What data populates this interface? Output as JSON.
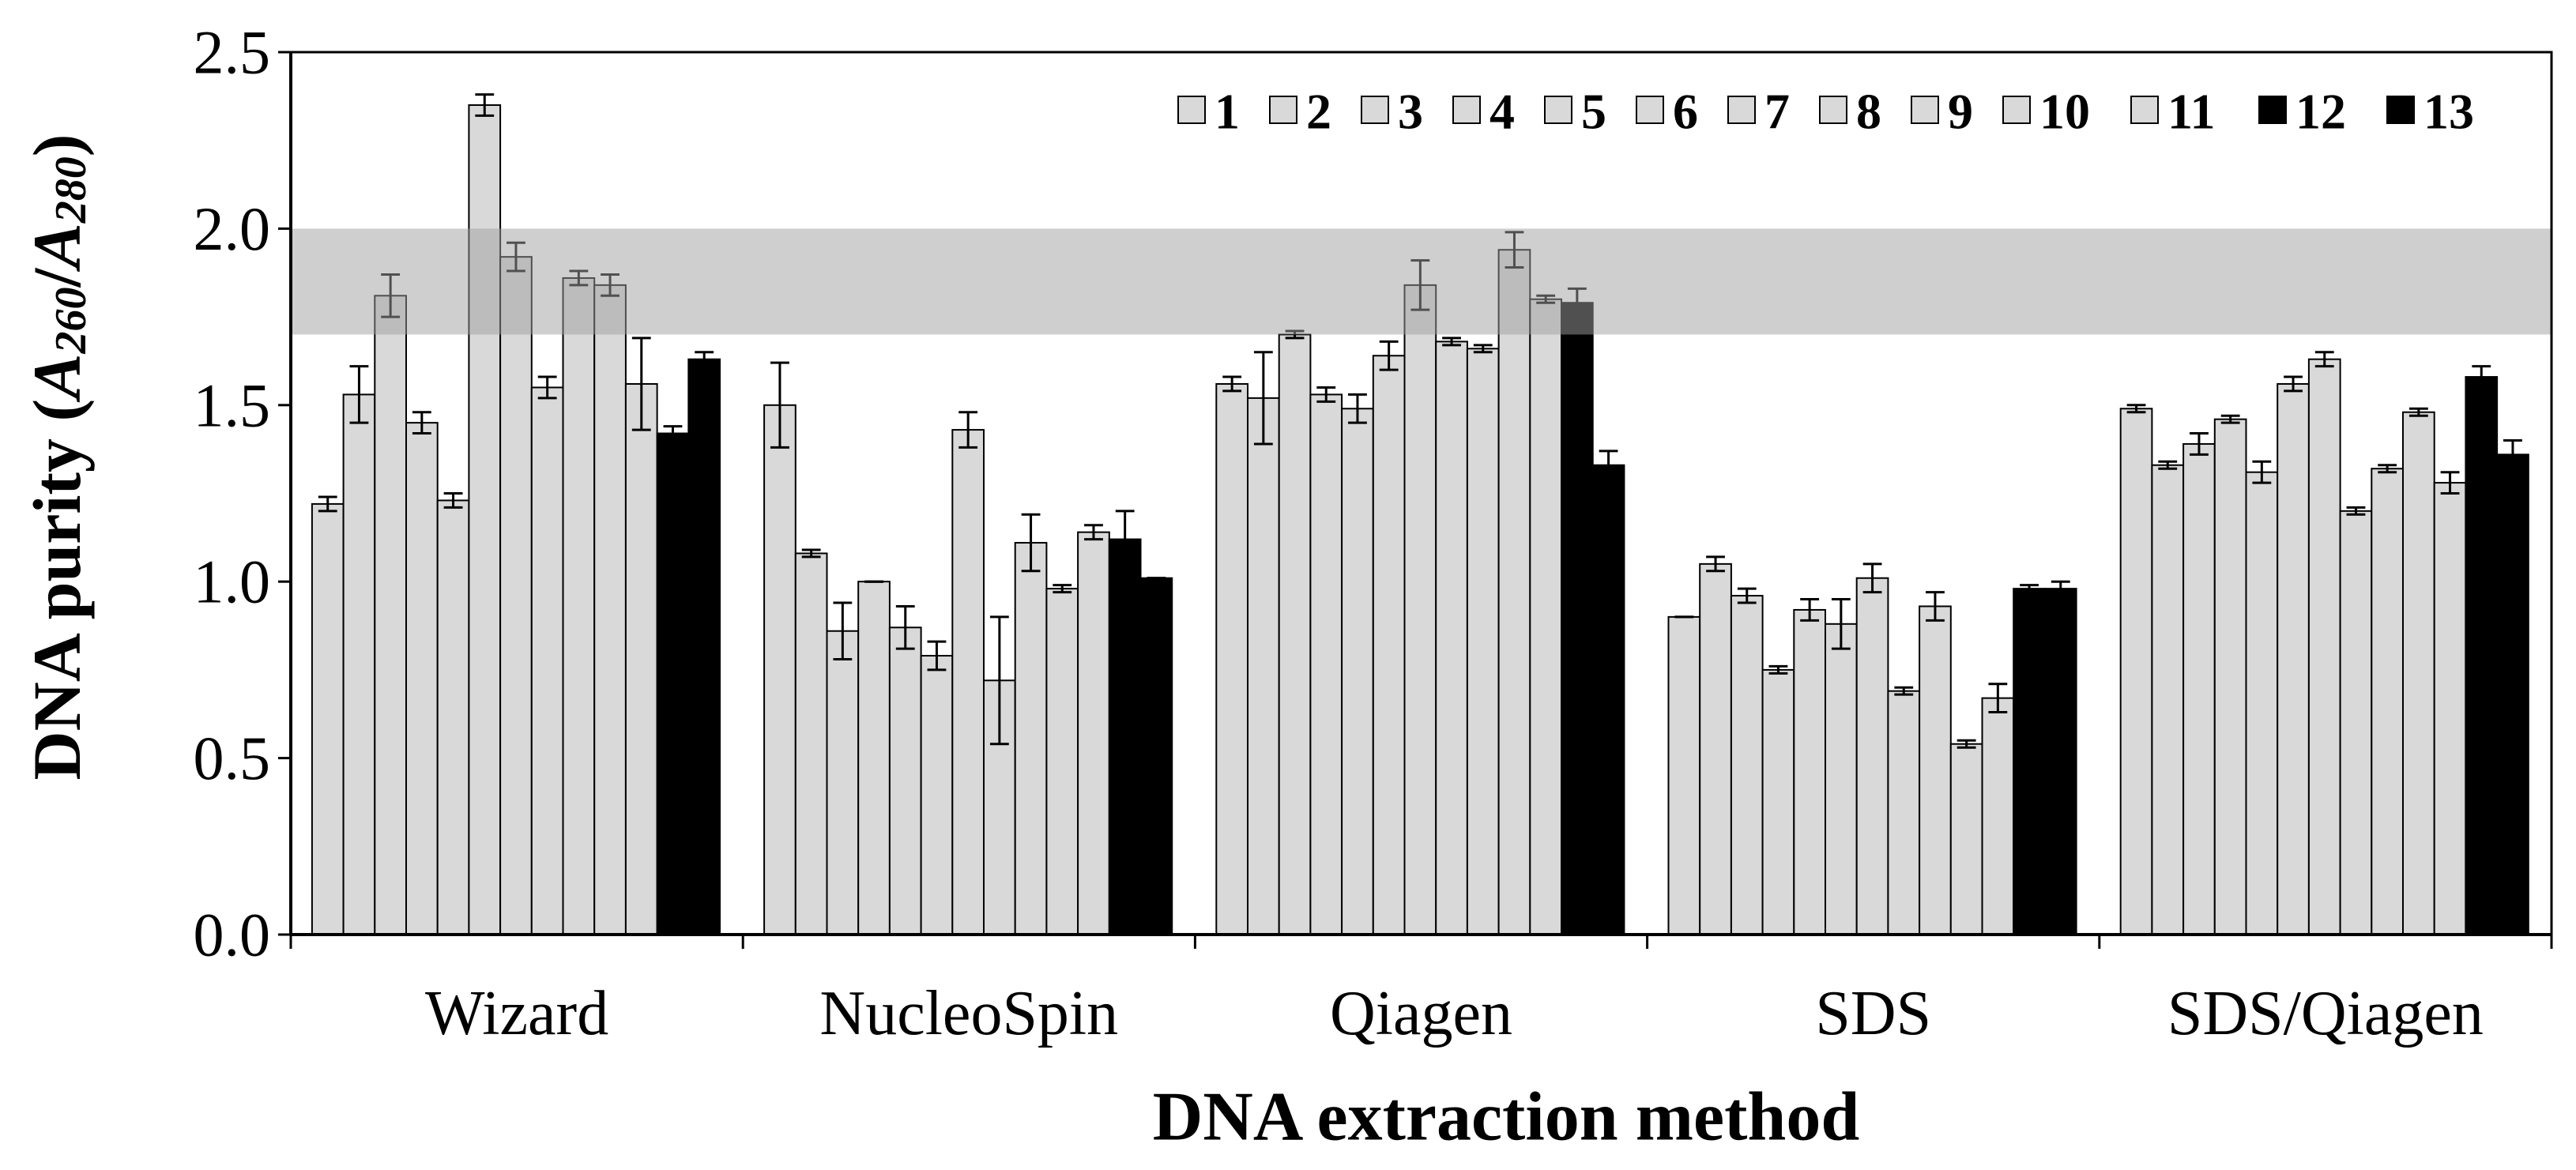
{
  "chart_data": {
    "type": "bar",
    "title": "",
    "xlabel": "DNA extraction method",
    "ylabel": {
      "prefix": "DNA purity (",
      "var1": "A",
      "sub1": "260",
      "slash": "/",
      "var2": "A",
      "sub2": "280",
      "suffix": ")"
    },
    "ylim": [
      0,
      2.5
    ],
    "yticks": [
      "0.0",
      "0.5",
      "1.0",
      "1.5",
      "2.0",
      "2.5"
    ],
    "grid": false,
    "legend_position": "top-right",
    "reference_band": [
      1.7,
      2.0
    ],
    "band_color": "#a0a0a0",
    "categories": [
      "Wizard",
      "NucleoSpin",
      "Qiagen",
      "SDS",
      "SDS/Qiagen"
    ],
    "series": [
      {
        "name": "1",
        "color": "#d9d9d9",
        "values": [
          1.22,
          1.5,
          1.56,
          0.9,
          1.49
        ],
        "errors": [
          0.02,
          0.12,
          0.02,
          0.0,
          0.01
        ]
      },
      {
        "name": "2",
        "color": "#d9d9d9",
        "values": [
          1.53,
          1.08,
          1.52,
          1.05,
          1.33
        ],
        "errors": [
          0.08,
          0.01,
          0.13,
          0.02,
          0.01
        ]
      },
      {
        "name": "3",
        "color": "#d9d9d9",
        "values": [
          1.81,
          0.86,
          1.7,
          0.96,
          1.39
        ],
        "errors": [
          0.06,
          0.08,
          0.01,
          0.02,
          0.03
        ]
      },
      {
        "name": "4",
        "color": "#d9d9d9",
        "values": [
          1.45,
          1.0,
          1.53,
          0.75,
          1.46
        ],
        "errors": [
          0.03,
          0.0,
          0.02,
          0.01,
          0.01
        ]
      },
      {
        "name": "5",
        "color": "#d9d9d9",
        "values": [
          1.23,
          0.87,
          1.49,
          0.92,
          1.31
        ],
        "errors": [
          0.02,
          0.06,
          0.04,
          0.03,
          0.03
        ]
      },
      {
        "name": "6",
        "color": "#d9d9d9",
        "values": [
          2.35,
          0.79,
          1.64,
          0.88,
          1.56
        ],
        "errors": [
          0.03,
          0.04,
          0.04,
          0.07,
          0.02
        ]
      },
      {
        "name": "7",
        "color": "#d9d9d9",
        "values": [
          1.92,
          1.43,
          1.84,
          1.01,
          1.63
        ],
        "errors": [
          0.04,
          0.05,
          0.07,
          0.04,
          0.02
        ]
      },
      {
        "name": "8",
        "color": "#d9d9d9",
        "values": [
          1.55,
          0.72,
          1.68,
          0.69,
          1.2
        ],
        "errors": [
          0.03,
          0.18,
          0.01,
          0.01,
          0.01
        ]
      },
      {
        "name": "9",
        "color": "#d9d9d9",
        "values": [
          1.86,
          1.11,
          1.66,
          0.93,
          1.32
        ],
        "errors": [
          0.02,
          0.08,
          0.01,
          0.04,
          0.01
        ]
      },
      {
        "name": "10",
        "color": "#d9d9d9",
        "values": [
          1.84,
          0.98,
          1.94,
          0.54,
          1.48
        ],
        "errors": [
          0.03,
          0.01,
          0.05,
          0.01,
          0.01
        ]
      },
      {
        "name": "11",
        "color": "#d9d9d9",
        "values": [
          1.56,
          1.14,
          1.8,
          0.67,
          1.28
        ],
        "errors": [
          0.13,
          0.02,
          0.01,
          0.04,
          0.03
        ]
      },
      {
        "name": "12",
        "color": "#000000",
        "values": [
          1.42,
          1.12,
          1.79,
          0.98,
          1.58
        ],
        "errors": [
          0.02,
          0.08,
          0.04,
          0.01,
          0.03
        ]
      },
      {
        "name": "13",
        "color": "#000000",
        "values": [
          1.63,
          1.01,
          1.33,
          0.98,
          1.36
        ],
        "errors": [
          0.02,
          0.0,
          0.04,
          0.02,
          0.04
        ]
      }
    ]
  }
}
